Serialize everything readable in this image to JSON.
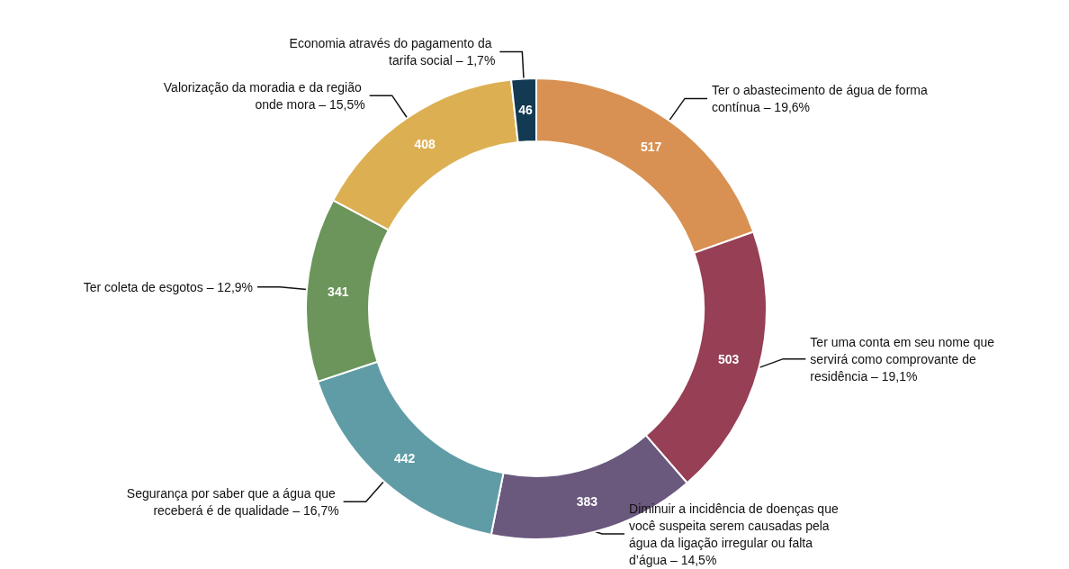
{
  "chart_data": {
    "type": "donut",
    "categories": [
      "Ter o abastecimento de água de forma contínua – 19,6%",
      "Ter uma conta em seu nome que servirá como comprovante de residência – 19,1%",
      "Diminuir a incidência de doenças que você suspeita serem causadas pela água da ligação irregular ou falta d’água – 14,5%",
      "Segurança por saber que a água que receberá é de qualidade – 16,7%",
      "Ter coleta de esgotos – 12,9%",
      "Valorização da moradia e da região onde mora – 15,5%",
      "Economia através do pagamento da tarifa social – 1,7%"
    ],
    "values": [
      517,
      503,
      383,
      442,
      341,
      408,
      46
    ],
    "colors": [
      "#d89152",
      "#963f55",
      "#6a587d",
      "#609ca6",
      "#6b955a",
      "#dcb052",
      "#123a52"
    ],
    "data_labels": true,
    "legend": false
  }
}
